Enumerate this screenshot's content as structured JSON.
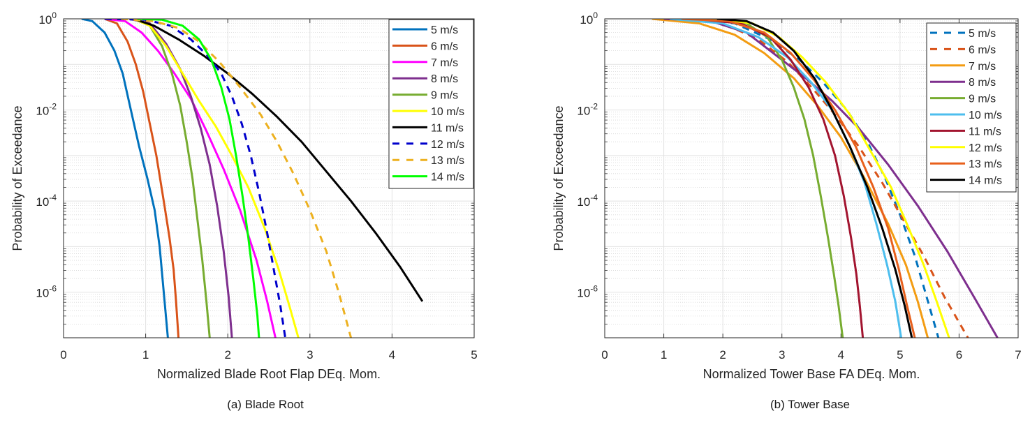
{
  "chart_data": [
    {
      "type": "line",
      "panel_caption": "(a) Blade Root",
      "title": "",
      "xlabel": "Normalized  Blade Root Flap DEq. Mom.",
      "ylabel": "Probability of Exceedance",
      "xlim": [
        0,
        5
      ],
      "ylim": [
        1e-07,
        1
      ],
      "yscale": "log",
      "xticks": [
        0,
        1,
        2,
        3,
        4,
        5
      ],
      "xtick_labels": [
        "0",
        "1",
        "2",
        "3",
        "4",
        "5"
      ],
      "yticks": [
        1,
        0.01,
        0.0001,
        1e-06
      ],
      "ytick_labels": [
        {
          "base": "10",
          "exp": "0"
        },
        {
          "base": "10",
          "exp": "-2"
        },
        {
          "base": "10",
          "exp": "-4"
        },
        {
          "base": "10",
          "exp": "-6"
        }
      ],
      "grid": true,
      "legend_position": "top-right",
      "series": [
        {
          "name": "5 m/s",
          "color": "#0072BD",
          "dash": false,
          "x": [
            0.22,
            0.35,
            0.5,
            0.62,
            0.72,
            0.82,
            0.92,
            1.02,
            1.11,
            1.17,
            1.22,
            1.27
          ],
          "log10p": [
            0,
            -0.05,
            -0.3,
            -0.7,
            -1.2,
            -2.0,
            -2.8,
            -3.5,
            -4.2,
            -5.0,
            -6.0,
            -7.0
          ]
        },
        {
          "name": "6 m/s",
          "color": "#D95319",
          "dash": false,
          "x": [
            0.5,
            0.65,
            0.78,
            0.88,
            0.97,
            1.05,
            1.13,
            1.22,
            1.29,
            1.34,
            1.37,
            1.4
          ],
          "log10p": [
            0,
            -0.1,
            -0.5,
            -1.0,
            -1.6,
            -2.3,
            -3.0,
            -4.0,
            -4.8,
            -5.5,
            -6.2,
            -7.0
          ]
        },
        {
          "name": "7 m/s",
          "color": "#FF00FF",
          "dash": false,
          "x": [
            0.5,
            0.75,
            0.95,
            1.15,
            1.35,
            1.55,
            1.75,
            1.95,
            2.15,
            2.35,
            2.48,
            2.58
          ],
          "log10p": [
            0,
            -0.05,
            -0.3,
            -0.7,
            -1.2,
            -1.75,
            -2.5,
            -3.3,
            -4.2,
            -5.3,
            -6.2,
            -7.0
          ]
        },
        {
          "name": "8 m/s",
          "color": "#7E2F8E",
          "dash": false,
          "x": [
            0.8,
            1.05,
            1.25,
            1.42,
            1.55,
            1.67,
            1.78,
            1.87,
            1.95,
            2.01,
            2.05
          ],
          "log10p": [
            0,
            -0.1,
            -0.55,
            -1.1,
            -1.7,
            -2.4,
            -3.2,
            -4.1,
            -5.1,
            -6.1,
            -7.0
          ]
        },
        {
          "name": "9 m/s",
          "color": "#77AC30",
          "dash": false,
          "x": [
            0.85,
            1.05,
            1.2,
            1.32,
            1.42,
            1.5,
            1.57,
            1.63,
            1.69,
            1.74,
            1.78
          ],
          "log10p": [
            0,
            -0.15,
            -0.6,
            -1.2,
            -1.9,
            -2.7,
            -3.5,
            -4.4,
            -5.3,
            -6.2,
            -7.0
          ]
        },
        {
          "name": "10 m/s",
          "color": "#FFFF00",
          "dash": false,
          "x": [
            0.85,
            1.05,
            1.25,
            1.45,
            1.65,
            1.85,
            2.05,
            2.25,
            2.45,
            2.62,
            2.75,
            2.86
          ],
          "log10p": [
            0,
            -0.15,
            -0.6,
            -1.2,
            -1.8,
            -2.35,
            -3.0,
            -3.7,
            -4.6,
            -5.5,
            -6.3,
            -7.0
          ]
        },
        {
          "name": "11 m/s",
          "color": "#000000",
          "dash": false,
          "x": [
            0.85,
            1.1,
            1.4,
            1.7,
            2.0,
            2.3,
            2.6,
            2.9,
            3.2,
            3.5,
            3.8,
            4.1,
            4.37
          ],
          "log10p": [
            0,
            -0.15,
            -0.45,
            -0.8,
            -1.2,
            -1.65,
            -2.15,
            -2.7,
            -3.35,
            -4.0,
            -4.7,
            -5.45,
            -6.2
          ]
        },
        {
          "name": "12 m/s",
          "color": "#0000CC",
          "dash": true,
          "x": [
            0.5,
            1.0,
            1.3,
            1.55,
            1.75,
            1.92,
            2.05,
            2.17,
            2.28,
            2.38,
            2.48,
            2.57,
            2.64,
            2.7
          ],
          "log10p": [
            0,
            -0.02,
            -0.15,
            -0.45,
            -0.8,
            -1.2,
            -1.7,
            -2.3,
            -3.0,
            -3.8,
            -4.7,
            -5.6,
            -6.3,
            -7.0
          ]
        },
        {
          "name": "13 m/s",
          "color": "#EDB120",
          "dash": true,
          "x": [
            0.7,
            1.1,
            1.4,
            1.65,
            1.9,
            2.15,
            2.4,
            2.6,
            2.8,
            3.0,
            3.2,
            3.35,
            3.5
          ],
          "log10p": [
            0,
            -0.05,
            -0.2,
            -0.5,
            -0.95,
            -1.5,
            -2.1,
            -2.7,
            -3.4,
            -4.2,
            -5.1,
            -6.0,
            -7.0
          ]
        },
        {
          "name": "14 m/s",
          "color": "#00FF00",
          "dash": false,
          "x": [
            0.9,
            1.2,
            1.45,
            1.65,
            1.8,
            1.92,
            2.02,
            2.1,
            2.18,
            2.25,
            2.31,
            2.36,
            2.38
          ],
          "log10p": [
            0,
            -0.02,
            -0.15,
            -0.45,
            -0.9,
            -1.5,
            -2.2,
            -3.0,
            -3.9,
            -4.8,
            -5.7,
            -6.5,
            -7.0
          ]
        }
      ]
    },
    {
      "type": "line",
      "panel_caption": "(b) Tower Base",
      "title": "",
      "xlabel": "Normalized Tower Base FA DEq. Mom.",
      "ylabel": "Probability of Exceedance",
      "xlim": [
        0,
        7
      ],
      "ylim": [
        1e-07,
        1
      ],
      "yscale": "log",
      "xticks": [
        0,
        1,
        2,
        3,
        4,
        5,
        6,
        7
      ],
      "xtick_labels": [
        "0",
        "1",
        "2",
        "3",
        "4",
        "5",
        "6",
        "7"
      ],
      "yticks": [
        1,
        0.01,
        0.0001,
        1e-06
      ],
      "ytick_labels": [
        {
          "base": "10",
          "exp": "0"
        },
        {
          "base": "10",
          "exp": "-2"
        },
        {
          "base": "10",
          "exp": "-4"
        },
        {
          "base": "10",
          "exp": "-6"
        }
      ],
      "grid": true,
      "legend_position": "top-right",
      "series": [
        {
          "name": "5 m/s",
          "color": "#0072BD",
          "dash": true,
          "x": [
            1.5,
            2.2,
            2.8,
            3.3,
            3.7,
            4.1,
            4.45,
            4.75,
            5.0,
            5.25,
            5.45,
            5.65
          ],
          "log10p": [
            0,
            -0.1,
            -0.45,
            -0.9,
            -1.4,
            -2.0,
            -2.7,
            -3.5,
            -4.3,
            -5.2,
            -6.1,
            -7.0
          ]
        },
        {
          "name": "6 m/s",
          "color": "#D95319",
          "dash": true,
          "x": [
            1.2,
            2.0,
            2.6,
            3.1,
            3.5,
            3.9,
            4.3,
            4.7,
            5.05,
            5.4,
            5.75,
            6.15
          ],
          "log10p": [
            0,
            -0.1,
            -0.45,
            -0.95,
            -1.5,
            -2.1,
            -2.8,
            -3.6,
            -4.4,
            -5.2,
            -6.1,
            -7.0
          ]
        },
        {
          "name": "7 m/s",
          "color": "#F39C12",
          "dash": false,
          "x": [
            0.8,
            1.6,
            2.2,
            2.7,
            3.2,
            3.6,
            4.0,
            4.4,
            4.8,
            5.1,
            5.3,
            5.47
          ],
          "log10p": [
            0,
            -0.1,
            -0.35,
            -0.75,
            -1.3,
            -1.9,
            -2.6,
            -3.5,
            -4.5,
            -5.4,
            -6.2,
            -7.0
          ]
        },
        {
          "name": "8 m/s",
          "color": "#7E2F8E",
          "dash": false,
          "x": [
            1.0,
            1.8,
            2.4,
            2.9,
            3.4,
            3.85,
            4.3,
            4.8,
            5.3,
            5.8,
            6.25,
            6.65
          ],
          "log10p": [
            0,
            -0.05,
            -0.3,
            -0.8,
            -1.3,
            -1.8,
            -2.4,
            -3.2,
            -4.1,
            -5.1,
            -6.1,
            -7.0
          ]
        },
        {
          "name": "9 m/s",
          "color": "#77AC30",
          "dash": false,
          "x": [
            1.8,
            2.4,
            2.75,
            3.0,
            3.2,
            3.38,
            3.53,
            3.66,
            3.78,
            3.88,
            3.96,
            4.03
          ],
          "log10p": [
            0,
            -0.1,
            -0.4,
            -0.9,
            -1.5,
            -2.2,
            -3.0,
            -3.9,
            -4.8,
            -5.6,
            -6.3,
            -7.0
          ]
        },
        {
          "name": "10 m/s",
          "color": "#4DBEEE",
          "dash": false,
          "x": [
            1.1,
            2.0,
            2.6,
            3.1,
            3.5,
            3.85,
            4.15,
            4.4,
            4.6,
            4.78,
            4.92,
            5.02
          ],
          "log10p": [
            0,
            -0.1,
            -0.4,
            -0.85,
            -1.4,
            -2.0,
            -2.8,
            -3.6,
            -4.5,
            -5.4,
            -6.2,
            -7.0
          ]
        },
        {
          "name": "11 m/s",
          "color": "#A2142F",
          "dash": false,
          "x": [
            1.5,
            2.3,
            2.8,
            3.15,
            3.45,
            3.7,
            3.9,
            4.05,
            4.17,
            4.26,
            4.32,
            4.37
          ],
          "log10p": [
            0,
            -0.1,
            -0.4,
            -0.9,
            -1.5,
            -2.2,
            -3.0,
            -3.9,
            -4.8,
            -5.6,
            -6.3,
            -7.0
          ]
        },
        {
          "name": "12 m/s",
          "color": "#FFFF00",
          "dash": false,
          "x": [
            1.9,
            2.5,
            2.95,
            3.35,
            3.75,
            4.15,
            4.5,
            4.85,
            5.15,
            5.4,
            5.62,
            5.83
          ],
          "log10p": [
            0,
            -0.1,
            -0.4,
            -0.85,
            -1.4,
            -2.1,
            -2.9,
            -3.7,
            -4.6,
            -5.4,
            -6.2,
            -7.0
          ]
        },
        {
          "name": "13 m/s",
          "color": "#E8601C",
          "dash": false,
          "x": [
            1.3,
            2.1,
            2.7,
            3.15,
            3.55,
            3.9,
            4.25,
            4.55,
            4.8,
            4.98,
            5.12,
            5.25
          ],
          "log10p": [
            0,
            -0.05,
            -0.3,
            -0.75,
            -1.35,
            -2.0,
            -2.8,
            -3.7,
            -4.6,
            -5.5,
            -6.3,
            -7.0
          ]
        },
        {
          "name": "14 m/s",
          "color": "#000000",
          "dash": false,
          "x": [
            1.9,
            2.4,
            2.85,
            3.2,
            3.55,
            3.85,
            4.15,
            4.45,
            4.7,
            4.92,
            5.08,
            5.2
          ],
          "log10p": [
            0,
            -0.05,
            -0.3,
            -0.7,
            -1.3,
            -2.0,
            -2.8,
            -3.7,
            -4.6,
            -5.5,
            -6.3,
            -7.0
          ]
        }
      ]
    }
  ]
}
